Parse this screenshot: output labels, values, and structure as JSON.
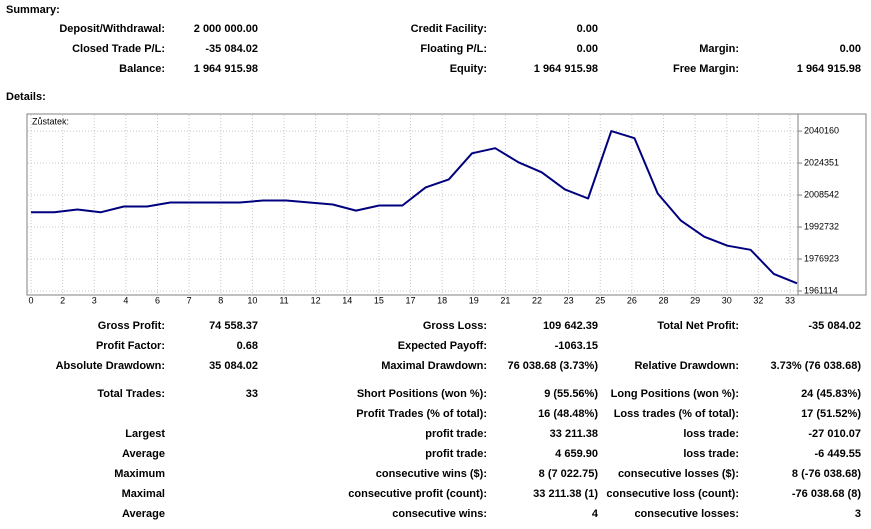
{
  "summary_title": "Summary:",
  "summary": [
    {
      "c1": {
        "label": "Deposit/Withdrawal:",
        "value": "2 000 000.00"
      },
      "c2": {
        "label": "Credit Facility:",
        "value": "0.00"
      }
    },
    {
      "c1": {
        "label": "Closed Trade P/L:",
        "value": "-35 084.02"
      },
      "c2": {
        "label": "Floating P/L:",
        "value": "0.00"
      },
      "c3": {
        "label": "Margin:",
        "value": "0.00"
      }
    },
    {
      "c1": {
        "label": "Balance:",
        "value": "1 964 915.98"
      },
      "c2": {
        "label": "Equity:",
        "value": "1 964 915.98"
      },
      "c3": {
        "label": "Free Margin:",
        "value": "1 964 915.98"
      }
    }
  ],
  "details_title": "Details:",
  "chart_data": {
    "type": "line",
    "series_label": "Zůstatek:",
    "color": "#00007f",
    "grid": true,
    "values": [
      2000000,
      2000000,
      2001370,
      2000000,
      2002860,
      2002860,
      2004850,
      2004850,
      2004850,
      2004850,
      2005840,
      2005840,
      2004850,
      2003860,
      2000870,
      2003360,
      2003360,
      2012300,
      2016280,
      2029200,
      2031690,
      2024730,
      2019760,
      2011310,
      2006840,
      2040140,
      2036660,
      2009320,
      1995900,
      1987950,
      1983480,
      1981490,
      1969560,
      1964915.98
    ],
    "xtick_labels": [
      0,
      2,
      3,
      4,
      6,
      7,
      8,
      10,
      11,
      12,
      14,
      15,
      17,
      18,
      19,
      21,
      22,
      23,
      25,
      26,
      28,
      29,
      30,
      32,
      33
    ],
    "ylim": [
      1959620,
      2048110
    ],
    "yticks": [
      2040160,
      2024351,
      2008542,
      1992732,
      1976923,
      1961114
    ]
  },
  "stats": [
    {
      "c1": {
        "label": "Gross Profit:",
        "value": "74 558.37"
      },
      "c2": {
        "label": "Gross Loss:",
        "value": "109 642.39"
      },
      "c3": {
        "label": "Total Net Profit:",
        "value": "-35 084.02"
      }
    },
    {
      "c1": {
        "label": "Profit Factor:",
        "value": "0.68"
      },
      "c2": {
        "label": "Expected Payoff:",
        "value": "-1063.15"
      }
    },
    {
      "c1": {
        "label": "Absolute Drawdown:",
        "value": "35 084.02"
      },
      "c2": {
        "label": "Maximal Drawdown:",
        "value": "76 038.68 (3.73%)"
      },
      "c3": {
        "label": "Relative Drawdown:",
        "value": "3.73% (76 038.68)"
      }
    },
    {
      "c1": {
        "label": "Total Trades:",
        "value": "33"
      },
      "c2": {
        "label": "Short Positions (won %):",
        "value": "9 (55.56%)"
      },
      "c3": {
        "label": "Long Positions (won %):",
        "value": "24 (45.83%)"
      }
    },
    {
      "c2": {
        "label": "Profit Trades (% of total):",
        "value": "16 (48.48%)"
      },
      "c3": {
        "label": "Loss trades (% of total):",
        "value": "17 (51.52%)"
      }
    },
    {
      "c1": {
        "label": "Largest"
      },
      "c2": {
        "label": "profit trade:",
        "value": "33 211.38"
      },
      "c3": {
        "label": "loss trade:",
        "value": "-27 010.07"
      }
    },
    {
      "c1": {
        "label": "Average"
      },
      "c2": {
        "label": "profit trade:",
        "value": "4 659.90"
      },
      "c3": {
        "label": "loss trade:",
        "value": "-6 449.55"
      }
    },
    {
      "c1": {
        "label": "Maximum"
      },
      "c2": {
        "label": "consecutive wins ($):",
        "value": "8 (7 022.75)"
      },
      "c3": {
        "label": "consecutive losses ($):",
        "value": "8 (-76 038.68)"
      }
    },
    {
      "c1": {
        "label": "Maximal"
      },
      "c2": {
        "label": "consecutive profit (count):",
        "value": "33 211.38 (1)"
      },
      "c3": {
        "label": "consecutive loss (count):",
        "value": "-76 038.68 (8)"
      }
    },
    {
      "c1": {
        "label": "Average"
      },
      "c2": {
        "label": "consecutive wins:",
        "value": "4"
      },
      "c3": {
        "label": "consecutive losses:",
        "value": "3"
      }
    }
  ]
}
